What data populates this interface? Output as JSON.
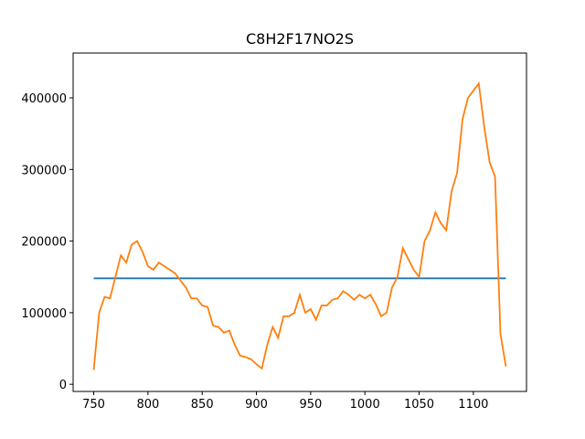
{
  "chart_data": {
    "type": "line",
    "title": "C8H2F17NO2S",
    "series": [
      {
        "color": "#1f77b4",
        "x": [
          750,
          1130
        ],
        "values": [
          148000,
          148000
        ]
      },
      {
        "color": "#ff7f0e",
        "x": [
          750,
          755,
          760,
          765,
          770,
          775,
          780,
          785,
          790,
          795,
          800,
          805,
          810,
          815,
          820,
          825,
          830,
          835,
          840,
          845,
          850,
          855,
          860,
          865,
          870,
          875,
          880,
          885,
          890,
          895,
          900,
          905,
          910,
          915,
          920,
          925,
          930,
          935,
          940,
          945,
          950,
          955,
          960,
          965,
          970,
          975,
          980,
          985,
          990,
          995,
          1000,
          1005,
          1010,
          1015,
          1020,
          1025,
          1030,
          1035,
          1040,
          1045,
          1050,
          1055,
          1060,
          1065,
          1070,
          1075,
          1080,
          1085,
          1090,
          1095,
          1100,
          1105,
          1110,
          1115,
          1120,
          1125,
          1130
        ],
        "values": [
          20000,
          100000,
          122000,
          120000,
          150000,
          180000,
          170000,
          195000,
          200000,
          185000,
          165000,
          160000,
          170000,
          165000,
          160000,
          155000,
          145000,
          135000,
          120000,
          120000,
          110000,
          108000,
          82000,
          80000,
          72000,
          75000,
          55000,
          40000,
          38000,
          35000,
          28000,
          22000,
          55000,
          80000,
          65000,
          95000,
          95000,
          100000,
          125000,
          100000,
          105000,
          90000,
          110000,
          110000,
          118000,
          120000,
          130000,
          125000,
          118000,
          125000,
          120000,
          125000,
          112000,
          95000,
          100000,
          135000,
          150000,
          190000,
          175000,
          160000,
          150000,
          200000,
          215000,
          240000,
          225000,
          215000,
          270000,
          295000,
          370000,
          400000,
          410000,
          420000,
          360000,
          310000,
          290000,
          70000,
          25000
        ]
      }
    ],
    "xlim": [
      731,
      1149
    ],
    "xticks": [
      750,
      800,
      850,
      900,
      950,
      1000,
      1050,
      1100
    ],
    "ylim": [
      -10000,
      462600
    ],
    "yticks": [
      0,
      100000,
      200000,
      300000,
      400000
    ]
  }
}
